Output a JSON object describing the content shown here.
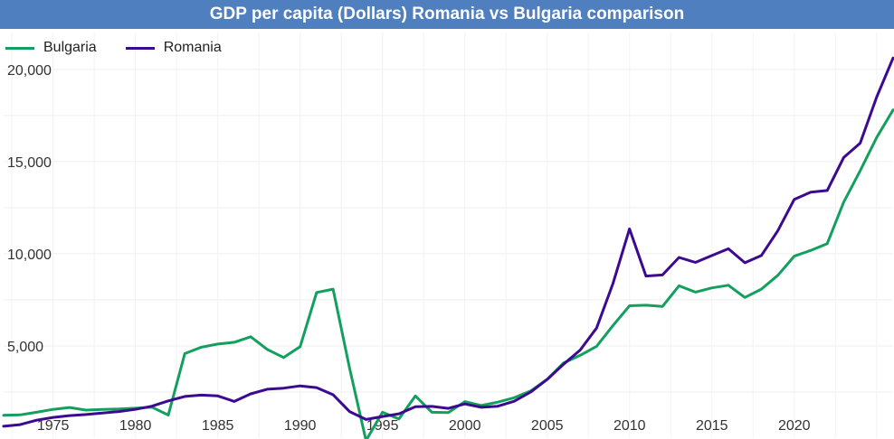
{
  "chart_data": {
    "type": "line",
    "title": "GDP per capita (Dollars) Romania vs Bulgaria comparison",
    "xlabel": "",
    "ylabel": "",
    "xlim": [
      1972,
      2026
    ],
    "ylim": [
      0,
      22000
    ],
    "x_ticks": [
      1975,
      1980,
      1985,
      1990,
      1995,
      2000,
      2005,
      2010,
      2015,
      2020
    ],
    "y_ticks": [
      5000,
      10000,
      15000,
      20000
    ],
    "y_tick_labels": [
      "5,000",
      "10,000",
      "15,000",
      "20,000"
    ],
    "grid": true,
    "legend_position": "top-left",
    "x": [
      1972,
      1973,
      1974,
      1975,
      1976,
      1977,
      1978,
      1979,
      1980,
      1981,
      1982,
      1983,
      1984,
      1985,
      1986,
      1987,
      1988,
      1989,
      1990,
      1991,
      1992,
      1993,
      1994,
      1995,
      1996,
      1997,
      1998,
      1999,
      2000,
      2001,
      2002,
      2003,
      2004,
      2005,
      2006,
      2007,
      2008,
      2009,
      2010,
      2011,
      2012,
      2013,
      2014,
      2015,
      2016,
      2017,
      2018,
      2019,
      2020,
      2021,
      2022,
      2023,
      2024,
      2025,
      2026
    ],
    "series": [
      {
        "name": "Bulgaria",
        "color": "#13a05f",
        "values": [
          1240,
          1260,
          1400,
          1560,
          1660,
          1520,
          1560,
          1580,
          1620,
          1680,
          1250,
          4580,
          4930,
          5100,
          5200,
          5500,
          4810,
          4370,
          4960,
          7900,
          8080,
          3800,
          -130,
          1400,
          1040,
          2290,
          1400,
          1380,
          1980,
          1770,
          1950,
          2190,
          2560,
          3190,
          4080,
          4490,
          4980,
          6110,
          7180,
          7210,
          7140,
          8260,
          7920,
          8150,
          8290,
          7630,
          8080,
          8830,
          9870,
          10180,
          10550,
          12800,
          14500,
          16300,
          17800
        ]
      },
      {
        "name": "Romania",
        "color": "#3b0a91",
        "values": [
          640,
          730,
          970,
          1120,
          1220,
          1280,
          1360,
          1440,
          1560,
          1730,
          2020,
          2260,
          2330,
          2290,
          1990,
          2400,
          2650,
          2710,
          2830,
          2740,
          2350,
          1440,
          1010,
          1170,
          1320,
          1700,
          1720,
          1610,
          1850,
          1670,
          1730,
          2000,
          2500,
          3180,
          4010,
          4770,
          5970,
          8400,
          11350,
          8790,
          8850,
          9800,
          9530,
          9900,
          10270,
          9510,
          9900,
          11250,
          12950,
          13340,
          13430,
          15220,
          16000,
          18490,
          20620
        ]
      }
    ]
  }
}
